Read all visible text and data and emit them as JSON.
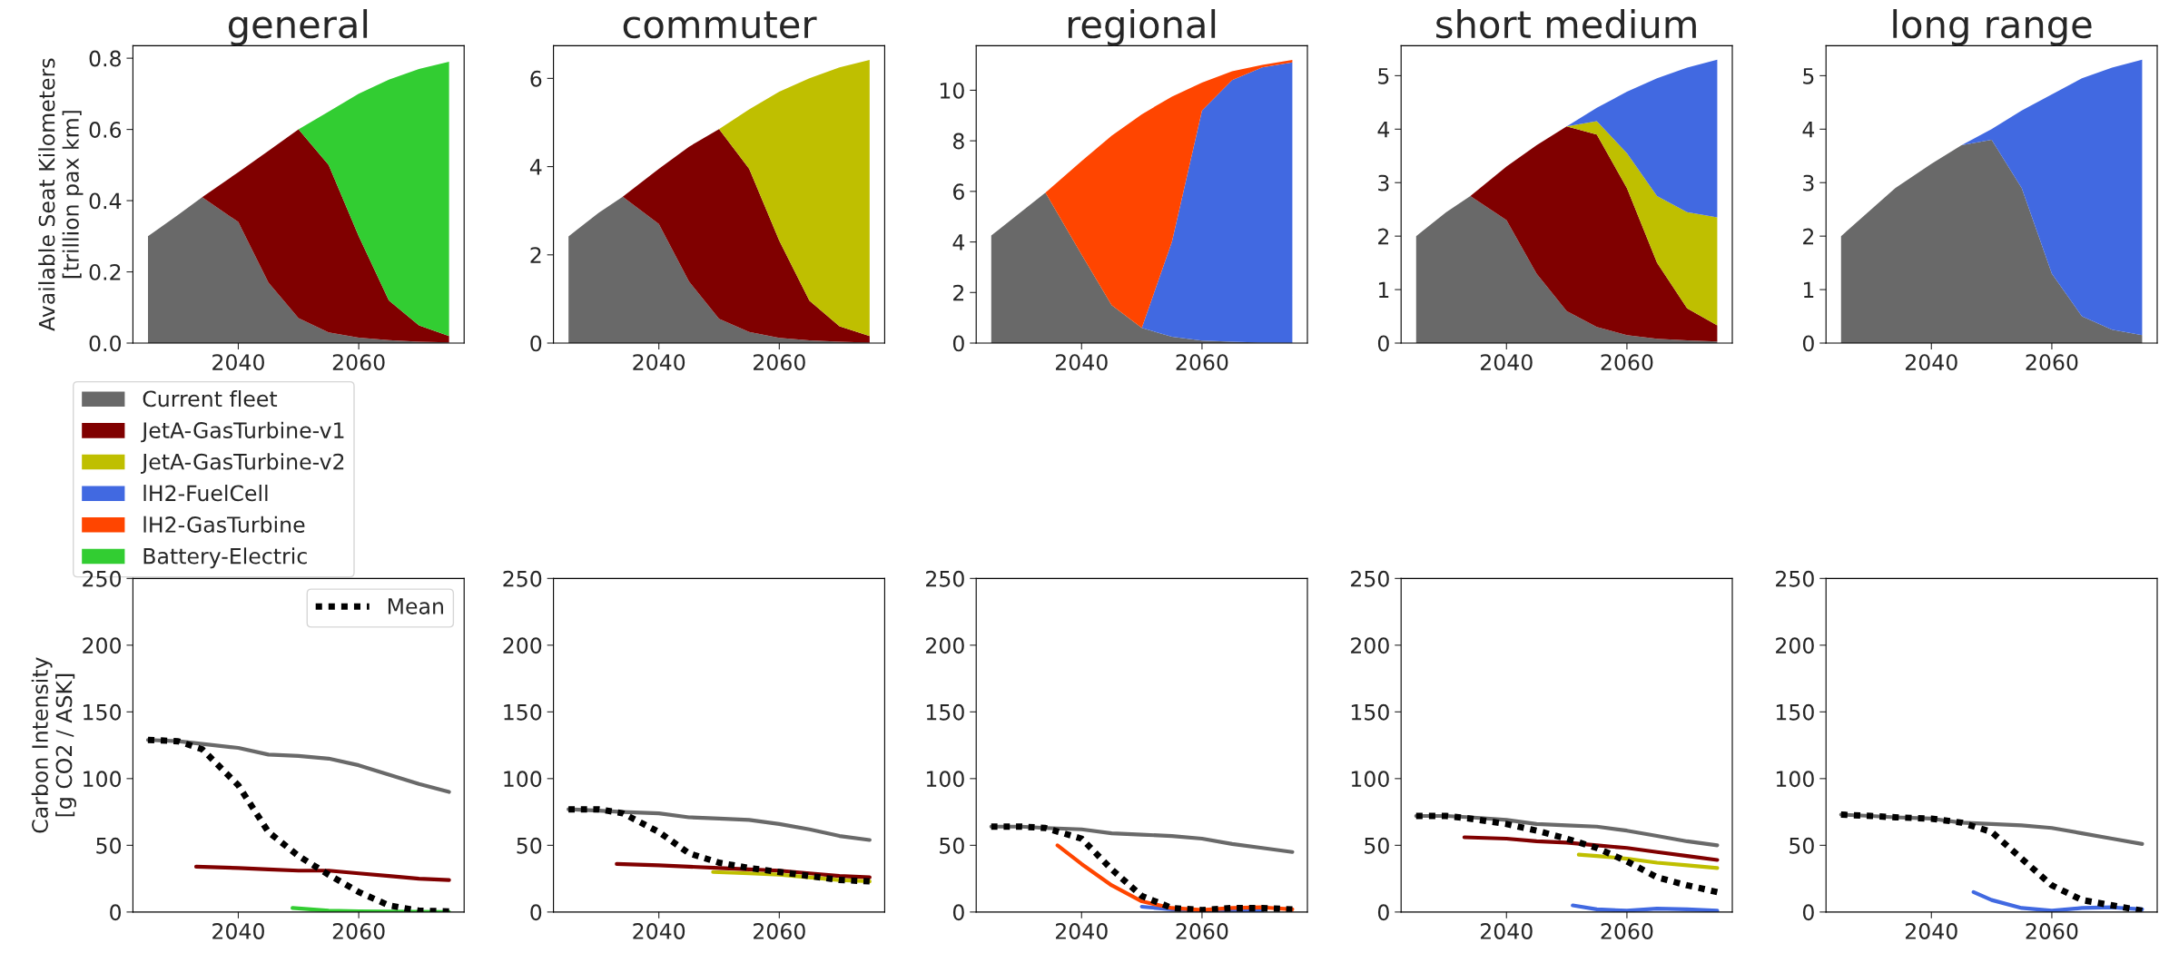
{
  "chart_data": [
    {
      "type": "area",
      "stacked": true,
      "title": "general",
      "ylabel": "Available Seat Kilometers\n[trillion pax km]",
      "legend": "bottom",
      "x": [
        2025,
        2030,
        2034,
        2040,
        2045,
        2050,
        2055,
        2060,
        2065,
        2070,
        2075
      ],
      "xlim": [
        2022.5,
        2077.5
      ],
      "xticks": [
        2040,
        2060
      ],
      "ylim": [
        0,
        0.835
      ],
      "yticks": [
        {
          "value": 0,
          "label": "0.0"
        },
        0.2,
        0.4,
        0.6,
        0.8
      ],
      "series": [
        {
          "name": "Current fleet",
          "color": "#696969",
          "values": [
            0.3,
            0.36,
            0.41,
            0.34,
            0.17,
            0.07,
            0.03,
            0.015,
            0.008,
            0.004,
            0.002
          ]
        },
        {
          "name": "JetA-GasTurbine-v1",
          "color": "#800000",
          "values": [
            0,
            0,
            0,
            0.14,
            0.37,
            0.53,
            0.47,
            0.285,
            0.112,
            0.046,
            0.018
          ]
        },
        {
          "name": "Battery-Electric",
          "color": "#32cd32",
          "values": [
            0,
            0,
            0,
            0,
            0,
            0,
            0.15,
            0.4,
            0.62,
            0.72,
            0.77
          ]
        }
      ]
    },
    {
      "type": "area",
      "stacked": true,
      "title": "commuter",
      "legend": "bottom",
      "x": [
        2025,
        2030,
        2034,
        2040,
        2045,
        2050,
        2055,
        2060,
        2065,
        2070,
        2075
      ],
      "xlim": [
        2022.5,
        2077.5
      ],
      "xticks": [
        2040,
        2060
      ],
      "ylim": [
        0,
        6.74
      ],
      "yticks": [
        0,
        2,
        4,
        6
      ],
      "series": [
        {
          "name": "Current fleet",
          "color": "#696969",
          "values": [
            2.42,
            2.95,
            3.32,
            2.7,
            1.4,
            0.55,
            0.25,
            0.12,
            0.06,
            0.03,
            0.01
          ]
        },
        {
          "name": "JetA-GasTurbine-v1",
          "color": "#800000",
          "values": [
            0,
            0,
            0,
            1.25,
            3.05,
            4.3,
            3.7,
            2.2,
            0.9,
            0.35,
            0.15
          ]
        },
        {
          "name": "JetA-GasTurbine-v2",
          "color": "#bfbf00",
          "values": [
            0,
            0,
            0,
            0,
            0,
            0,
            1.35,
            3.38,
            5.04,
            5.87,
            6.26
          ]
        }
      ]
    },
    {
      "type": "area",
      "stacked": true,
      "title": "regional",
      "legend": "bottom",
      "x": [
        2025,
        2030,
        2034,
        2040,
        2045,
        2050,
        2055,
        2060,
        2065,
        2070,
        2075
      ],
      "xlim": [
        2022.5,
        2077.5
      ],
      "xticks": [
        2040,
        2060
      ],
      "ylim": [
        0,
        11.76
      ],
      "yticks": [
        0,
        2,
        4,
        6,
        8,
        10
      ],
      "series": [
        {
          "name": "Current fleet",
          "color": "#696969",
          "values": [
            4.25,
            5.2,
            5.95,
            3.5,
            1.5,
            0.6,
            0.25,
            0.1,
            0.05,
            0.02,
            0.01
          ]
        },
        {
          "name": "lH2-FuelCell",
          "color": "#4169e1",
          "values": [
            0,
            0,
            0,
            0,
            0,
            0,
            3.75,
            9.1,
            10.35,
            10.88,
            11.09
          ]
        },
        {
          "name": "lH2-GasTurbine",
          "color": "#ff4500",
          "values": [
            0,
            0,
            0,
            3.7,
            6.7,
            8.45,
            5.75,
            1.1,
            0.35,
            0.1,
            0.1
          ]
        }
      ]
    },
    {
      "type": "area",
      "stacked": true,
      "title": "short medium",
      "legend": "bottom",
      "x": [
        2025,
        2030,
        2034,
        2040,
        2045,
        2050,
        2055,
        2060,
        2065,
        2070,
        2075
      ],
      "xlim": [
        2022.5,
        2077.5
      ],
      "xticks": [
        2040,
        2060
      ],
      "ylim": [
        0,
        5.56
      ],
      "yticks": [
        0,
        1,
        2,
        3,
        4,
        5
      ],
      "series": [
        {
          "name": "Current fleet",
          "color": "#696969",
          "values": [
            2.0,
            2.45,
            2.75,
            2.3,
            1.3,
            0.6,
            0.3,
            0.15,
            0.08,
            0.05,
            0.03
          ]
        },
        {
          "name": "JetA-GasTurbine-v1",
          "color": "#800000",
          "values": [
            0,
            0,
            0,
            1.0,
            2.4,
            3.45,
            3.6,
            2.75,
            1.42,
            0.6,
            0.3
          ]
        },
        {
          "name": "JetA-GasTurbine-v2",
          "color": "#bfbf00",
          "values": [
            0,
            0,
            0,
            0,
            0,
            0,
            0.25,
            0.65,
            1.25,
            1.8,
            2.02
          ]
        },
        {
          "name": "lH2-FuelCell",
          "color": "#4169e1",
          "values": [
            0,
            0,
            0,
            0,
            0,
            0,
            0.25,
            1.15,
            2.2,
            2.7,
            2.95
          ]
        }
      ]
    },
    {
      "type": "area",
      "stacked": true,
      "title": "long range",
      "legend": "bottom",
      "x": [
        2025,
        2030,
        2034,
        2040,
        2045,
        2050,
        2055,
        2060,
        2065,
        2070,
        2075
      ],
      "xlim": [
        2022.5,
        2077.5
      ],
      "xticks": [
        2040,
        2060
      ],
      "ylim": [
        0,
        5.56
      ],
      "yticks": [
        0,
        1,
        2,
        3,
        4,
        5
      ],
      "series": [
        {
          "name": "Current fleet",
          "color": "#696969",
          "values": [
            2.0,
            2.5,
            2.9,
            3.35,
            3.7,
            3.8,
            2.9,
            1.3,
            0.5,
            0.25,
            0.15
          ]
        },
        {
          "name": "lH2-FuelCell",
          "color": "#4169e1",
          "values": [
            0,
            0,
            0,
            0,
            0,
            0.2,
            1.45,
            3.35,
            4.45,
            4.9,
            5.15
          ]
        }
      ]
    },
    {
      "type": "line",
      "ylabel": "Carbon Intensity\n[g CO2 / ASK]",
      "legend": "top right",
      "xlim": [
        2022.5,
        2077.5
      ],
      "xticks": [
        2040,
        2060
      ],
      "ylim": [
        0,
        250
      ],
      "yticks": [
        0,
        50,
        100,
        150,
        200,
        250
      ],
      "series": [
        {
          "color": "#696969",
          "x": [
            2025,
            2030,
            2034,
            2040,
            2045,
            2050,
            2055,
            2060,
            2065,
            2070,
            2075
          ],
          "values": [
            129,
            128,
            126,
            123,
            118,
            117,
            115,
            110,
            103,
            96,
            90
          ]
        },
        {
          "color": "#800000",
          "x": [
            2033,
            2040,
            2045,
            2050,
            2055,
            2060,
            2065,
            2070,
            2075
          ],
          "values": [
            34,
            33,
            32,
            31,
            31,
            29,
            27,
            25,
            24
          ]
        },
        {
          "color": "#32cd32",
          "x": [
            2049,
            2055,
            2060,
            2075
          ],
          "values": [
            3,
            1,
            0.5,
            0
          ]
        },
        {
          "name": "Mean",
          "color": "#000000",
          "line_style": "dotted",
          "x": [
            2025,
            2030,
            2034,
            2040,
            2045,
            2050,
            2055,
            2060,
            2065,
            2070,
            2075
          ],
          "values": [
            129,
            128,
            122,
            95,
            60,
            42,
            28,
            15,
            5,
            1,
            0.5
          ]
        }
      ]
    },
    {
      "type": "line",
      "xlim": [
        2022.5,
        2077.5
      ],
      "xticks": [
        2040,
        2060
      ],
      "ylim": [
        0,
        250
      ],
      "yticks": [
        0,
        50,
        100,
        150,
        200,
        250
      ],
      "series": [
        {
          "color": "#696969",
          "x": [
            2025,
            2030,
            2034,
            2040,
            2045,
            2050,
            2055,
            2060,
            2065,
            2070,
            2075
          ],
          "values": [
            77,
            76,
            75,
            74,
            71,
            70,
            69,
            66,
            62,
            57,
            54
          ]
        },
        {
          "color": "#800000",
          "x": [
            2033,
            2040,
            2045,
            2050,
            2055,
            2060,
            2065,
            2070,
            2075
          ],
          "values": [
            36,
            35,
            34,
            33,
            32,
            31,
            29,
            27,
            26
          ]
        },
        {
          "color": "#bfbf00",
          "x": [
            2049,
            2055,
            2060,
            2065,
            2070,
            2075
          ],
          "values": [
            30,
            29,
            28,
            26,
            24,
            23
          ]
        },
        {
          "color": "#000000",
          "line_style": "dotted",
          "x": [
            2025,
            2030,
            2034,
            2040,
            2045,
            2050,
            2055,
            2060,
            2065,
            2070,
            2075
          ],
          "values": [
            77,
            77,
            74,
            60,
            44,
            37,
            33,
            30,
            27,
            24,
            23
          ]
        }
      ]
    },
    {
      "type": "line",
      "xlim": [
        2022.5,
        2077.5
      ],
      "xticks": [
        2040,
        2060
      ],
      "ylim": [
        0,
        250
      ],
      "yticks": [
        0,
        50,
        100,
        150,
        200,
        250
      ],
      "series": [
        {
          "color": "#696969",
          "x": [
            2025,
            2030,
            2034,
            2040,
            2045,
            2050,
            2055,
            2060,
            2065,
            2070,
            2075
          ],
          "values": [
            64,
            64,
            63,
            62,
            59,
            58,
            57,
            55,
            51,
            48,
            45
          ]
        },
        {
          "color": "#4169e1",
          "x": [
            2050,
            2055,
            2060,
            2065,
            2070
          ],
          "values": [
            4,
            2,
            1,
            1,
            1
          ]
        },
        {
          "color": "#ff4500",
          "x": [
            2036,
            2040,
            2045,
            2050,
            2055,
            2060,
            2065,
            2070,
            2075
          ],
          "values": [
            50,
            36,
            20,
            8,
            3,
            1.5,
            3,
            3.5,
            2
          ]
        },
        {
          "color": "#000000",
          "line_style": "dotted",
          "x": [
            2025,
            2030,
            2034,
            2040,
            2045,
            2050,
            2055,
            2060,
            2065,
            2070,
            2075
          ],
          "values": [
            64,
            64,
            63,
            55,
            32,
            12,
            3,
            1.5,
            3,
            3,
            2
          ]
        }
      ]
    },
    {
      "type": "line",
      "xlim": [
        2022.5,
        2077.5
      ],
      "xticks": [
        2040,
        2060
      ],
      "ylim": [
        0,
        250
      ],
      "yticks": [
        0,
        50,
        100,
        150,
        200,
        250
      ],
      "series": [
        {
          "color": "#696969",
          "x": [
            2025,
            2030,
            2034,
            2040,
            2045,
            2050,
            2055,
            2060,
            2065,
            2070,
            2075
          ],
          "values": [
            72,
            72,
            71,
            69,
            66,
            65,
            64,
            61,
            57,
            53,
            50
          ]
        },
        {
          "color": "#800000",
          "x": [
            2033,
            2040,
            2045,
            2050,
            2055,
            2060,
            2065,
            2070,
            2075
          ],
          "values": [
            56,
            55,
            53,
            52,
            50,
            48,
            45,
            42,
            39
          ]
        },
        {
          "color": "#bfbf00",
          "x": [
            2052,
            2055,
            2060,
            2065,
            2070,
            2075
          ],
          "values": [
            43,
            42,
            40,
            37,
            35,
            33
          ]
        },
        {
          "color": "#4169e1",
          "x": [
            2051,
            2055,
            2060,
            2065,
            2070,
            2075
          ],
          "values": [
            5,
            2,
            1,
            2.5,
            2,
            1
          ]
        },
        {
          "color": "#000000",
          "line_style": "dotted",
          "x": [
            2025,
            2030,
            2034,
            2040,
            2045,
            2050,
            2055,
            2060,
            2065,
            2070,
            2075
          ],
          "values": [
            72,
            72,
            70,
            66,
            61,
            55,
            48,
            38,
            26,
            20,
            15
          ]
        }
      ]
    },
    {
      "type": "line",
      "xlim": [
        2022.5,
        2077.5
      ],
      "xticks": [
        2040,
        2060
      ],
      "ylim": [
        0,
        250
      ],
      "yticks": [
        0,
        50,
        100,
        150,
        200,
        250
      ],
      "series": [
        {
          "color": "#696969",
          "x": [
            2025,
            2030,
            2034,
            2040,
            2045,
            2050,
            2055,
            2060,
            2065,
            2070,
            2075
          ],
          "values": [
            73,
            72,
            71,
            70,
            67,
            66,
            65,
            63,
            59,
            55,
            51
          ]
        },
        {
          "color": "#4169e1",
          "x": [
            2047,
            2050,
            2055,
            2060,
            2065,
            2070,
            2075
          ],
          "values": [
            15,
            9,
            3,
            1,
            3,
            3.5,
            2
          ]
        },
        {
          "color": "#000000",
          "line_style": "dotted",
          "x": [
            2025,
            2030,
            2034,
            2040,
            2045,
            2050,
            2055,
            2060,
            2065,
            2070,
            2075
          ],
          "values": [
            73,
            72,
            71,
            70,
            67,
            60,
            40,
            20,
            9,
            5,
            1
          ]
        }
      ]
    }
  ]
}
